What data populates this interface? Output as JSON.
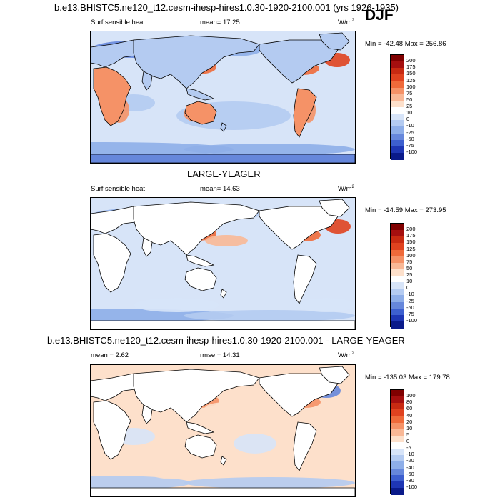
{
  "season": "DJF",
  "panels": [
    {
      "title": "b.e13.BHISTC5.ne120_t12.cesm-ihesp-hires1.0.30-1920-2100.001 (yrs 1926-1935)",
      "left": "Surf sensible heat",
      "center": "mean=  17.25",
      "units_base": "W/m",
      "units_exp": "2",
      "minmax": "Min = -42.48 Max = 256.86",
      "colorbar": [
        "200",
        "175",
        "150",
        "125",
        "100",
        "75",
        "50",
        "25",
        "10",
        "0",
        "-10",
        "-25",
        "-50",
        "-75",
        "-100"
      ]
    },
    {
      "title": "LARGE-YEAGER",
      "left": "Surf sensible heat",
      "center": "mean=  14.63",
      "units_base": "W/m",
      "units_exp": "2",
      "minmax": "Min = -14.59 Max = 273.95",
      "colorbar": [
        "200",
        "175",
        "150",
        "125",
        "100",
        "75",
        "50",
        "25",
        "10",
        "0",
        "-10",
        "-25",
        "-50",
        "-75",
        "-100"
      ]
    },
    {
      "title": "b.e13.BHISTC5.ne120_t12.cesm-ihesp-hires1.0.30-1920-2100.001 - LARGE-YEAGER",
      "left": "mean =   2.62",
      "center": "rmse =  14.31",
      "units_base": "W/m",
      "units_exp": "2",
      "minmax": "Min = -135.03 Max = 179.78",
      "colorbar": [
        "100",
        "80",
        "60",
        "40",
        "20",
        "10",
        "5",
        "0",
        "-5",
        "-10",
        "-20",
        "-40",
        "-60",
        "-80",
        "-100"
      ]
    }
  ],
  "palette": [
    "#7f0000",
    "#a50f0f",
    "#c82a12",
    "#e0421f",
    "#ef6a3a",
    "#f59267",
    "#f9b896",
    "#fde0cb",
    "#ffffff",
    "#d7e4f8",
    "#b4cbf1",
    "#8eaee8",
    "#6687db",
    "#3d5fcf",
    "#1e36b4",
    "#0a1a8a"
  ],
  "chart_data": [
    {
      "type": "heatmap",
      "title": "b.e13.BHISTC5.ne120_t12.cesm-ihesp-hires1.0.30-1920-2100.001 (yrs 1926-1935)",
      "variable": "Surf sensible heat",
      "season": "DJF",
      "units": "W/m2",
      "mean": 17.25,
      "min": -42.48,
      "max": 256.86,
      "contour_levels": [
        -100,
        -75,
        -50,
        -25,
        -10,
        0,
        10,
        25,
        50,
        75,
        100,
        125,
        150,
        175,
        200
      ]
    },
    {
      "type": "heatmap",
      "title": "LARGE-YEAGER",
      "variable": "Surf sensible heat",
      "season": "DJF",
      "units": "W/m2",
      "mean": 14.63,
      "min": -14.59,
      "max": 273.95,
      "contour_levels": [
        -100,
        -75,
        -50,
        -25,
        -10,
        0,
        10,
        25,
        50,
        75,
        100,
        125,
        150,
        175,
        200
      ]
    },
    {
      "type": "heatmap",
      "title": "b.e13.BHISTC5.ne120_t12.cesm-ihesp-hires1.0.30-1920-2100.001 - LARGE-YEAGER",
      "season": "DJF",
      "units": "W/m2",
      "mean": 2.62,
      "rmse": 14.31,
      "min": -135.03,
      "max": 179.78,
      "contour_levels": [
        -100,
        -80,
        -60,
        -40,
        -20,
        -10,
        -5,
        0,
        5,
        10,
        20,
        40,
        60,
        80,
        100
      ]
    }
  ]
}
